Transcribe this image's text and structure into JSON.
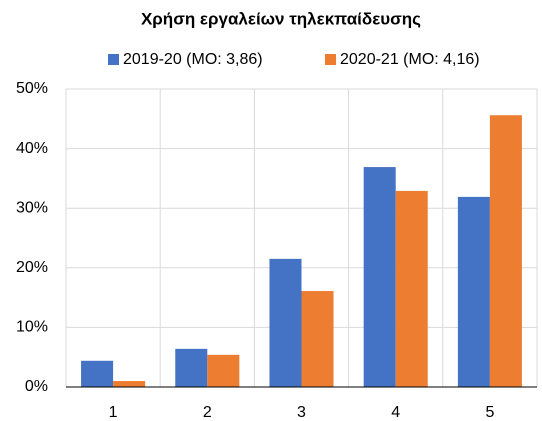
{
  "chart_data": {
    "type": "bar",
    "title": "Χρήση εργαλείων τηλεκπαίδευσης",
    "categories": [
      "1",
      "2",
      "3",
      "4",
      "5"
    ],
    "series": [
      {
        "name": "2019-20 (ΜΟ: 3,86)",
        "color": "#4472c4",
        "values": [
          4.4,
          6.4,
          21.5,
          36.9,
          31.9
        ]
      },
      {
        "name": "2020-21 (ΜΟ: 4,16)",
        "color": "#ed7d31",
        "values": [
          1.0,
          5.4,
          16.1,
          32.9,
          45.6
        ]
      }
    ],
    "ylim": [
      0,
      50
    ],
    "yticks": [
      {
        "value": 0,
        "label": "0%"
      },
      {
        "value": 10,
        "label": "10%"
      },
      {
        "value": 20,
        "label": "20%"
      },
      {
        "value": 30,
        "label": "30%"
      },
      {
        "value": 40,
        "label": "40%"
      },
      {
        "value": 50,
        "label": "50%"
      }
    ],
    "grid": true
  }
}
